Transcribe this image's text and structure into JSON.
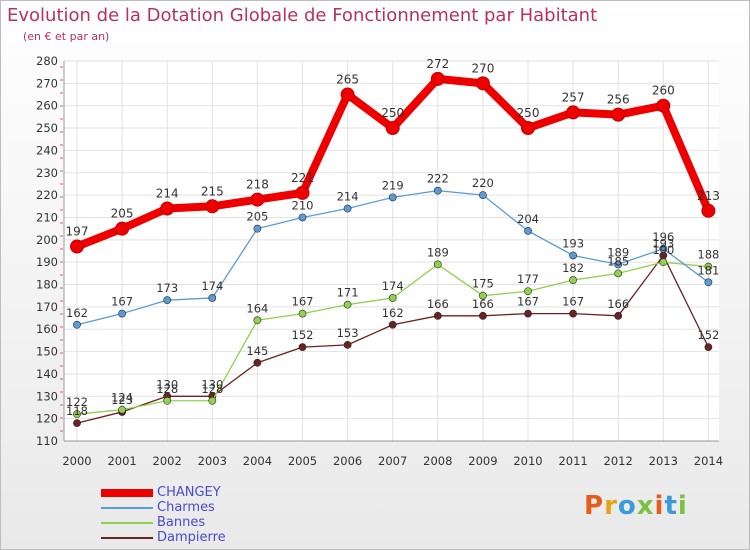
{
  "title": "Evolution de la Dotation Globale de Fonctionnement par Habitant",
  "subtitle": "(en € et par an)",
  "logo": {
    "text": "Proxiti",
    "colors": [
      "#e65c1a",
      "#e8a317",
      "#3a9bd9",
      "#7cc242",
      "#e65c1a",
      "#3a9bd9",
      "#7cc242"
    ]
  },
  "chart_data": {
    "type": "line",
    "title": "Evolution de la Dotation Globale de Fonctionnement par Habitant",
    "subtitle": "(en € et par an)",
    "x": [
      "2000",
      "2001",
      "2002",
      "2003",
      "2004",
      "2005",
      "2006",
      "2007",
      "2008",
      "2009",
      "2010",
      "2011",
      "2012",
      "2013",
      "2014"
    ],
    "ylim": [
      110,
      280
    ],
    "yticks": [
      110,
      120,
      130,
      140,
      150,
      160,
      170,
      180,
      190,
      200,
      210,
      220,
      230,
      240,
      250,
      260,
      270,
      280
    ],
    "grid": true,
    "legend_position": "bottom-left",
    "series": [
      {
        "name": "CHANGEY",
        "color": "#ee0000",
        "values": [
          197,
          205,
          214,
          215,
          218,
          221,
          265,
          250,
          272,
          270,
          250,
          257,
          256,
          260,
          213
        ],
        "labels": [
          "197",
          "205",
          "214",
          "215",
          "218",
          "221",
          "265",
          "250",
          "272",
          "270",
          "250",
          "257",
          "256",
          "260",
          "213"
        ]
      },
      {
        "name": "Charmes",
        "color": "#5b9bd5",
        "values": [
          162,
          167,
          173,
          174,
          205,
          210,
          214,
          219,
          222,
          220,
          204,
          193,
          189,
          196,
          181
        ],
        "labels": [
          "162",
          "167",
          "173",
          "174",
          "205",
          "210",
          "214",
          "219",
          "222",
          "220",
          "204",
          "193",
          "189",
          "196",
          "181"
        ]
      },
      {
        "name": "Bannes",
        "color": "#92d050",
        "values": [
          122,
          124,
          128,
          128,
          164,
          167,
          171,
          174,
          189,
          175,
          177,
          182,
          185,
          190,
          188
        ],
        "labels": [
          "122",
          "124",
          "128",
          "128",
          "164",
          "167",
          "171",
          "174",
          "189",
          "175",
          "177",
          "182",
          "185",
          "190",
          "188"
        ]
      },
      {
        "name": "Dampierre",
        "color": "#6b2222",
        "values": [
          118,
          123,
          130,
          130,
          145,
          152,
          153,
          162,
          166,
          166,
          167,
          167,
          166,
          193,
          152
        ],
        "labels": [
          "118",
          "123",
          "130",
          "130",
          "145",
          "152",
          "153",
          "162",
          "166",
          "166",
          "167",
          "167",
          "166",
          "193",
          "152"
        ]
      }
    ]
  }
}
